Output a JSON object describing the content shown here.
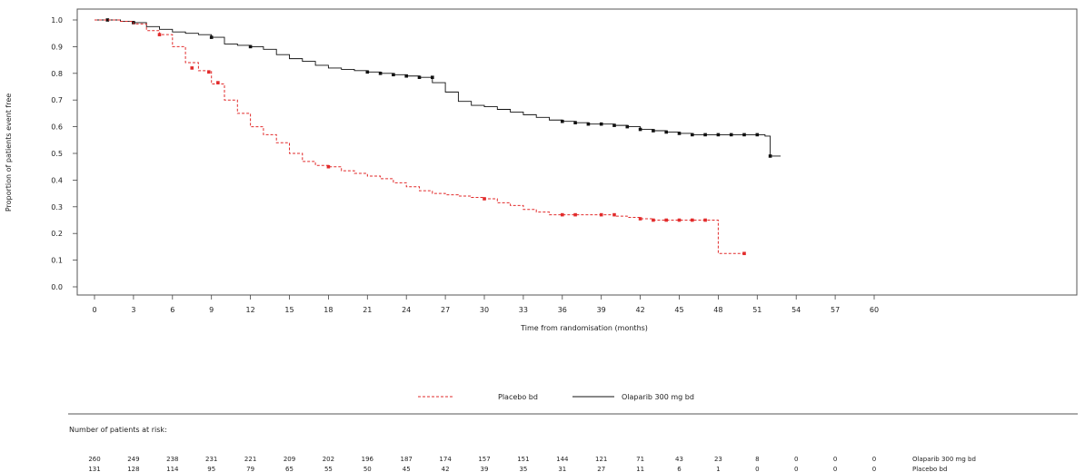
{
  "chart_data": {
    "type": "line",
    "title": "",
    "xlabel": "Time from randomisation (months)",
    "ylabel": "Proportion of patients event free",
    "xlim": [
      0,
      60
    ],
    "ylim": [
      0.0,
      1.0
    ],
    "xticks": [
      0,
      3,
      6,
      9,
      12,
      15,
      18,
      21,
      24,
      27,
      30,
      33,
      36,
      39,
      42,
      45,
      48,
      51,
      54,
      57,
      60
    ],
    "yticks": [
      0.0,
      0.1,
      0.2,
      0.3,
      0.4,
      0.5,
      0.6,
      0.7,
      0.8,
      0.9,
      1.0
    ],
    "grid": false,
    "legend_position": "bottom-center",
    "series": [
      {
        "name": "Olaparib 300 mg bd",
        "color": "#111111",
        "line_style": "solid",
        "x": [
          0,
          1,
          2,
          3,
          4,
          5,
          6,
          7,
          8,
          9,
          10,
          11,
          12,
          13,
          14,
          15,
          16,
          17,
          18,
          19,
          20,
          21,
          22,
          23,
          24,
          25,
          26,
          27,
          28,
          29,
          30,
          31,
          32,
          33,
          34,
          35,
          36,
          37,
          38,
          39,
          40,
          41,
          42,
          43,
          44,
          45,
          46,
          47,
          48,
          49,
          50,
          51,
          51.6,
          52,
          52.8
        ],
        "y": [
          1.0,
          1.0,
          0.995,
          0.99,
          0.975,
          0.965,
          0.955,
          0.95,
          0.945,
          0.935,
          0.91,
          0.905,
          0.9,
          0.89,
          0.87,
          0.855,
          0.845,
          0.83,
          0.82,
          0.815,
          0.81,
          0.805,
          0.8,
          0.795,
          0.79,
          0.785,
          0.765,
          0.73,
          0.695,
          0.68,
          0.675,
          0.665,
          0.655,
          0.645,
          0.635,
          0.625,
          0.62,
          0.615,
          0.61,
          0.61,
          0.605,
          0.6,
          0.59,
          0.585,
          0.58,
          0.575,
          0.57,
          0.57,
          0.57,
          0.57,
          0.57,
          0.57,
          0.565,
          0.49,
          0.49
        ],
        "censor_marks_x": [
          1,
          3,
          9,
          12,
          21,
          22,
          23,
          24,
          25,
          26,
          36,
          37,
          38,
          39,
          40,
          41,
          42,
          43,
          44,
          45,
          46,
          47,
          48,
          49,
          50,
          51,
          52
        ],
        "censor_marks_y": [
          1.0,
          0.99,
          0.935,
          0.9,
          0.805,
          0.8,
          0.795,
          0.79,
          0.785,
          0.785,
          0.62,
          0.615,
          0.61,
          0.61,
          0.605,
          0.6,
          0.59,
          0.585,
          0.58,
          0.575,
          0.57,
          0.57,
          0.57,
          0.57,
          0.57,
          0.57,
          0.49
        ]
      },
      {
        "name": "Placebo bd",
        "color": "#e22b2b",
        "line_style": "dashed",
        "x": [
          0,
          1,
          2,
          3,
          4,
          5,
          6,
          7,
          8,
          9,
          10,
          11,
          12,
          13,
          14,
          15,
          16,
          17,
          18,
          19,
          20,
          21,
          22,
          23,
          24,
          25,
          26,
          27,
          28,
          29,
          30,
          31,
          32,
          33,
          34,
          35,
          36,
          37,
          38,
          39,
          40,
          41,
          42,
          43,
          44,
          45,
          46,
          47,
          47.6,
          48,
          49,
          50
        ],
        "y": [
          1.0,
          1.0,
          0.995,
          0.985,
          0.96,
          0.945,
          0.9,
          0.84,
          0.81,
          0.76,
          0.7,
          0.65,
          0.6,
          0.57,
          0.54,
          0.5,
          0.47,
          0.455,
          0.45,
          0.435,
          0.425,
          0.415,
          0.405,
          0.39,
          0.375,
          0.36,
          0.35,
          0.345,
          0.34,
          0.335,
          0.33,
          0.315,
          0.305,
          0.29,
          0.28,
          0.27,
          0.27,
          0.27,
          0.27,
          0.27,
          0.265,
          0.26,
          0.255,
          0.25,
          0.25,
          0.25,
          0.25,
          0.25,
          0.25,
          0.125,
          0.125,
          0.125
        ],
        "censor_marks_x": [
          5,
          7.5,
          8.8,
          9.5,
          18,
          30,
          36,
          37,
          39,
          40,
          42,
          43,
          44,
          45,
          46,
          47,
          50
        ],
        "censor_marks_y": [
          0.945,
          0.82,
          0.805,
          0.765,
          0.45,
          0.33,
          0.27,
          0.27,
          0.27,
          0.27,
          0.255,
          0.25,
          0.25,
          0.25,
          0.25,
          0.25,
          0.125
        ]
      }
    ],
    "risk_table": {
      "title": "Number of patients at risk:",
      "rows": [
        {
          "label": "Olaparib 300 mg bd",
          "values": [
            "260",
            "249",
            "238",
            "231",
            "221",
            "209",
            "202",
            "196",
            "187",
            "174",
            "157",
            "151",
            "144",
            "121",
            "71",
            "43",
            "23",
            "8",
            "0",
            "0",
            "0"
          ]
        },
        {
          "label": "Placebo bd",
          "values": [
            "131",
            "128",
            "114",
            "95",
            "79",
            "65",
            "55",
            "50",
            "45",
            "42",
            "39",
            "35",
            "31",
            "27",
            "11",
            "6",
            "1",
            "0",
            "0",
            "0",
            "0"
          ]
        }
      ]
    }
  }
}
